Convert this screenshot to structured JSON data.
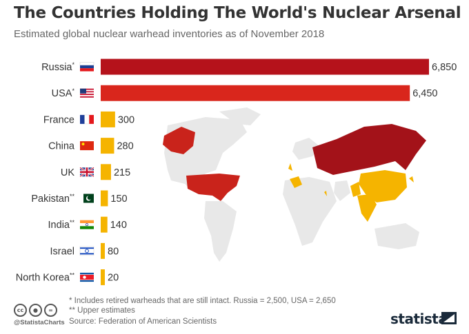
{
  "header": {
    "title": "The Countries Holding The World's Nuclear Arsenal",
    "subtitle": "Estimated global nuclear warhead inventories as of November 2018"
  },
  "chart_data": {
    "type": "bar",
    "orientation": "horizontal",
    "title": "The Countries Holding The World's Nuclear Arsenal",
    "subtitle": "Estimated global nuclear warhead inventories as of November 2018",
    "categories": [
      "Russia",
      "USA",
      "France",
      "China",
      "UK",
      "Pakistan",
      "India",
      "Israel",
      "North Korea"
    ],
    "markers": [
      "*",
      "*",
      "",
      "",
      "",
      "**",
      "**",
      "",
      "**"
    ],
    "values": [
      6850,
      6450,
      300,
      280,
      215,
      150,
      140,
      80,
      20
    ],
    "value_labels": [
      "6,850",
      "6,450",
      "300",
      "280",
      "215",
      "150",
      "140",
      "80",
      "20"
    ],
    "xlim": [
      0,
      6850
    ],
    "grid": false,
    "legend": "none",
    "colors": {
      "Russia": "#b5121b",
      "USA": "#d9261c",
      "others": "#f5b400"
    },
    "background_map": "world map with holder countries shaded"
  },
  "footer": {
    "note1": "*   Includes retired warheads that are still intact. Russia = 2,500, USA = 2,650",
    "note2": "** Upper estimates",
    "source": "Source: Federation of American Scientists",
    "handle": "@StatistaCharts",
    "brand": "statista"
  },
  "icons": [
    "cc-icon",
    "attribution-icon",
    "no-derivatives-icon",
    "statista-logo-icon"
  ]
}
